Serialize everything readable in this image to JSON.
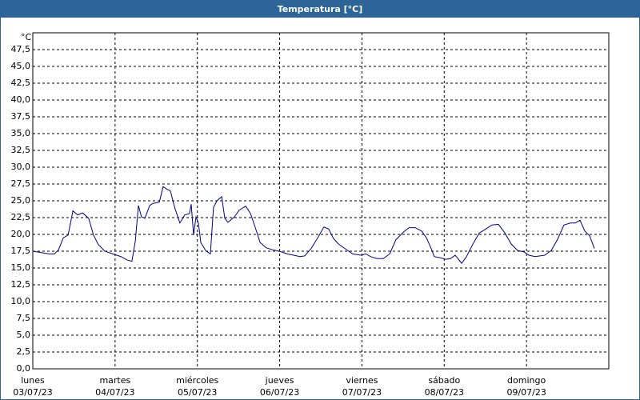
{
  "chart_data": {
    "type": "line",
    "title": "Temperatura [°C]",
    "y_unit": "°C",
    "x": [
      0,
      2.3,
      4.7,
      6.3,
      7.5,
      8.9,
      10.3,
      11.7,
      13.1,
      14.5,
      16.3,
      17.7,
      19.1,
      21,
      23.3,
      25.7,
      27.5,
      28.9,
      29.9,
      30.8,
      31.7,
      32.7,
      34.1,
      35,
      36.9,
      38,
      39.2,
      40.1,
      41.5,
      42.9,
      44.3,
      45.7,
      46.2,
      46.9,
      47.6,
      48.3,
      49,
      50.4,
      51.8,
      52.7,
      53.7,
      55.1,
      56,
      56.9,
      58.8,
      60.2,
      62.1,
      63.5,
      64.9,
      66.3,
      68.1,
      70,
      71.9,
      74.2,
      76.1,
      77.9,
      79.3,
      81.2,
      83.1,
      84.9,
      86.3,
      87.7,
      89.1,
      91,
      93.3,
      95.7,
      97.1,
      98.5,
      100.3,
      102.2,
      104.1,
      105.9,
      107.8,
      109.7,
      111.5,
      113.4,
      114.8,
      116.2,
      117.1,
      119,
      120.4,
      121.8,
      123.2,
      125.1,
      126.5,
      128.3,
      130.2,
      132.1,
      133.9,
      135.8,
      137.7,
      139.5,
      141.4,
      143.3,
      144.7,
      146.5,
      149.3,
      151.2,
      153.1,
      154.9,
      156.8,
      158.2,
      159.6,
      161,
      162.4,
      163.8
    ],
    "series": [
      {
        "name": "Temperatura",
        "color": "#00008b",
        "values": [
          17.5,
          17.3,
          17.1,
          17.1,
          17.7,
          19.5,
          19.9,
          23.5,
          22.9,
          23.2,
          22.4,
          19.9,
          18.5,
          17.5,
          17.1,
          16.7,
          16.2,
          16.0,
          19.0,
          24.3,
          22.6,
          22.4,
          24.3,
          24.6,
          24.8,
          27.1,
          26.7,
          26.5,
          23.8,
          21.7,
          22.9,
          23.1,
          24.5,
          19.9,
          22.6,
          21.7,
          18.8,
          17.6,
          17.1,
          24.0,
          25.0,
          25.6,
          22.4,
          21.8,
          22.6,
          23.6,
          24.2,
          23.1,
          21.0,
          18.8,
          18.0,
          17.7,
          17.5,
          17.1,
          16.9,
          16.7,
          16.8,
          17.9,
          19.5,
          21.1,
          20.8,
          19.4,
          18.6,
          17.9,
          17.1,
          16.9,
          17.1,
          16.7,
          16.4,
          16.4,
          17.1,
          19.2,
          20.2,
          21.0,
          21.0,
          20.5,
          19.5,
          17.9,
          16.7,
          16.5,
          16.3,
          16.4,
          16.9,
          15.7,
          16.7,
          18.5,
          20.2,
          20.8,
          21.4,
          21.5,
          20.2,
          18.6,
          17.6,
          17.4,
          16.9,
          16.7,
          16.9,
          17.6,
          19.3,
          21.4,
          21.7,
          21.7,
          22.1,
          20.5,
          19.8,
          17.9
        ]
      }
    ],
    "xlim": [
      0,
      168
    ],
    "xticks": [
      {
        "value": 0,
        "label": "lunes"
      },
      {
        "value": 24,
        "label": "martes"
      },
      {
        "value": 48,
        "label": "miércoles"
      },
      {
        "value": 72,
        "label": "jueves"
      },
      {
        "value": 96,
        "label": "viernes"
      },
      {
        "value": 120,
        "label": "sábado"
      },
      {
        "value": 144,
        "label": "domingo"
      }
    ],
    "xtick_dates": [
      "03/07/23",
      "04/07/23",
      "05/07/23",
      "06/07/23",
      "07/07/23",
      "08/07/23",
      "09/07/23"
    ],
    "ylim": [
      0,
      50
    ],
    "yticks": [
      {
        "value": 0,
        "label": "0,0"
      },
      {
        "value": 2.5,
        "label": "2,5"
      },
      {
        "value": 5,
        "label": "5,0"
      },
      {
        "value": 7.5,
        "label": "7,5"
      },
      {
        "value": 10,
        "label": "10,0"
      },
      {
        "value": 12.5,
        "label": "12,5"
      },
      {
        "value": 15,
        "label": "15,0"
      },
      {
        "value": 17.5,
        "label": "17,5"
      },
      {
        "value": 20,
        "label": "20,0"
      },
      {
        "value": 22.5,
        "label": "22,5"
      },
      {
        "value": 25,
        "label": "25,0"
      },
      {
        "value": 27.5,
        "label": "27,5"
      },
      {
        "value": 30,
        "label": "30,0"
      },
      {
        "value": 32.5,
        "label": "32,5"
      },
      {
        "value": 35,
        "label": "35,0"
      },
      {
        "value": 37.5,
        "label": "37,5"
      },
      {
        "value": 40,
        "label": "40,0"
      },
      {
        "value": 42.5,
        "label": "42,5"
      },
      {
        "value": 45,
        "label": "45,0"
      },
      {
        "value": 47.5,
        "label": "47,5"
      }
    ],
    "grid": true
  }
}
